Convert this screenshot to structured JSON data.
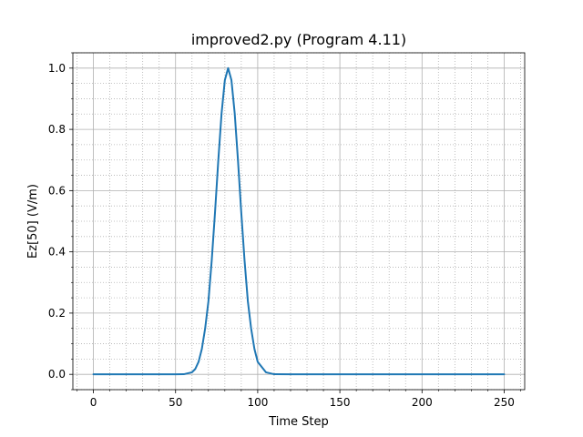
{
  "chart_data": {
    "type": "line",
    "title": "improved2.py (Program 4.11)",
    "xlabel": "Time Step",
    "ylabel": "Ez[50] (V/m)",
    "xlim": [
      -12.5,
      262.5
    ],
    "ylim": [
      -0.05,
      1.05
    ],
    "x_ticks": [
      0,
      50,
      100,
      150,
      200,
      250
    ],
    "y_ticks": [
      0.0,
      0.2,
      0.4,
      0.6,
      0.8,
      1.0
    ],
    "x_tick_labels": [
      "0",
      "50",
      "100",
      "150",
      "200",
      "250"
    ],
    "y_tick_labels": [
      "0.0",
      "0.2",
      "0.4",
      "0.6",
      "0.8",
      "1.0"
    ],
    "grid": {
      "major": true,
      "minor": true,
      "minor_style": "dotted"
    },
    "series": [
      {
        "color": "#1f77b4",
        "x": [
          0,
          10,
          20,
          30,
          40,
          50,
          55,
          60,
          62,
          64,
          66,
          68,
          70,
          72,
          74,
          76,
          78,
          80,
          82,
          84,
          86,
          88,
          90,
          92,
          94,
          96,
          98,
          100,
          105,
          110,
          120,
          150,
          200,
          250
        ],
        "y": [
          0,
          0,
          0,
          0,
          0,
          0,
          0.0004,
          0.0067,
          0.0176,
          0.0408,
          0.083,
          0.1496,
          0.2384,
          0.3712,
          0.5276,
          0.6977,
          0.8521,
          0.9608,
          1.0,
          0.9608,
          0.8521,
          0.6977,
          0.5276,
          0.3712,
          0.2384,
          0.1496,
          0.083,
          0.0408,
          0.0067,
          0.0004,
          0,
          0,
          0,
          0
        ]
      }
    ]
  }
}
